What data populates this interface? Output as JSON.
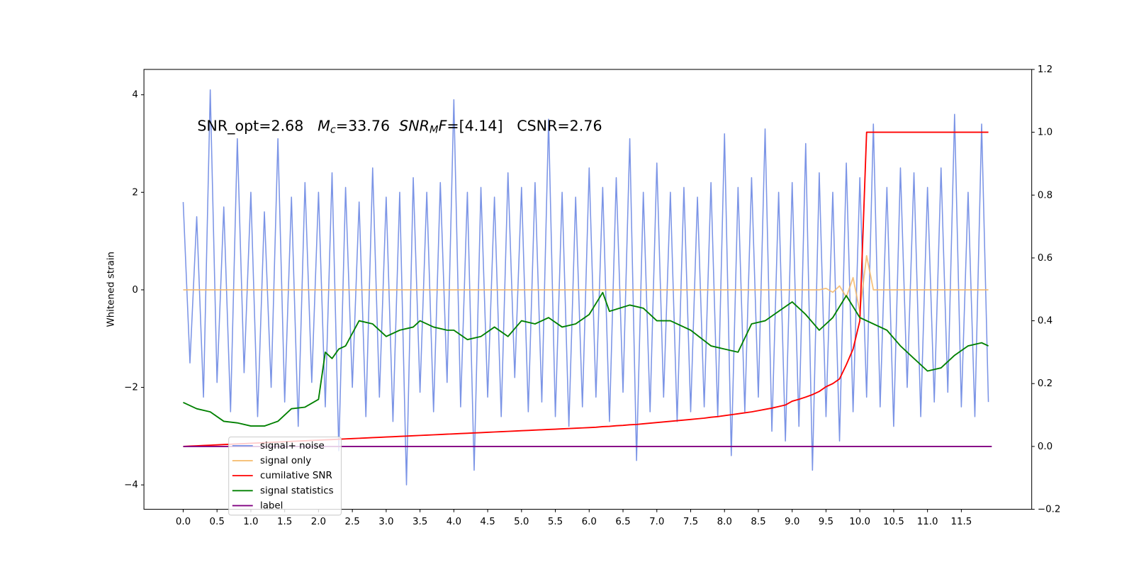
{
  "chart_data": {
    "type": "line",
    "ylabel": "Whitened strain",
    "annotation": [
      {
        "text": "SNR_opt=2.68   "
      },
      {
        "text": "M",
        "italic": true
      },
      {
        "text": "c",
        "italic": true,
        "sub": true
      },
      {
        "text": "=33.76  "
      },
      {
        "text": "SNR",
        "italic": true
      },
      {
        "text": "M",
        "italic": true,
        "sub": true
      },
      {
        "text": "F",
        "italic": true
      },
      {
        "text": "=[4.14]   CSNR=2.76"
      }
    ],
    "xlim": [
      -0.58,
      12.54
    ],
    "xticks": [
      {
        "value": 0,
        "label": "0.0"
      },
      0.5,
      {
        "value": 1,
        "label": "1.0"
      },
      1.5,
      {
        "value": 2,
        "label": "2.0"
      },
      2.5,
      {
        "value": 3,
        "label": "3.0"
      },
      3.5,
      {
        "value": 4,
        "label": "4.0"
      },
      4.5,
      {
        "value": 5,
        "label": "5.0"
      },
      5.5,
      {
        "value": 6,
        "label": "6.0"
      },
      6.5,
      {
        "value": 7,
        "label": "7.0"
      },
      7.5,
      {
        "value": 8,
        "label": "8.0"
      },
      8.5,
      {
        "value": 9,
        "label": "9.0"
      },
      9.5,
      {
        "value": 10,
        "label": "10.0"
      },
      10.5,
      {
        "value": 11,
        "label": "11.0"
      },
      11.5
    ],
    "ylim": [
      -4.5,
      4.52
    ],
    "yticks": [
      {
        "value": -4,
        "label": "−4"
      },
      {
        "value": -2,
        "label": "−2"
      },
      0,
      2,
      4
    ],
    "y2lim": [
      -0.2,
      1.2
    ],
    "y2ticks": [
      {
        "value": -0.2,
        "label": "−0.2"
      },
      {
        "value": 0,
        "label": "0.0"
      },
      0.2,
      0.4,
      0.6,
      0.8,
      {
        "value": 1,
        "label": "1.0"
      },
      1.2
    ],
    "x": [
      0,
      0.1,
      0.2,
      0.3,
      0.4,
      0.5,
      0.6,
      0.7,
      0.8,
      0.9,
      1,
      1.1,
      1.2,
      1.3,
      1.4,
      1.5,
      1.6,
      1.7,
      1.8,
      1.9,
      2,
      2.1,
      2.2,
      2.3,
      2.4,
      2.5,
      2.6,
      2.7,
      2.8,
      2.9,
      3,
      3.1,
      3.2,
      3.3,
      3.4,
      3.5,
      3.6,
      3.7,
      3.8,
      3.9,
      4,
      4.1,
      4.2,
      4.3,
      4.4,
      4.5,
      4.6,
      4.7,
      4.8,
      4.9,
      5,
      5.1,
      5.2,
      5.3,
      5.4,
      5.5,
      5.6,
      5.7,
      5.8,
      5.9,
      6,
      6.1,
      6.2,
      6.3,
      6.4,
      6.5,
      6.6,
      6.7,
      6.8,
      6.9,
      7,
      7.1,
      7.2,
      7.3,
      7.4,
      7.5,
      7.6,
      7.7,
      7.8,
      7.9,
      8,
      8.1,
      8.2,
      8.3,
      8.4,
      8.5,
      8.6,
      8.7,
      8.8,
      8.9,
      9,
      9.1,
      9.2,
      9.3,
      9.4,
      9.5,
      9.6,
      9.7,
      9.8,
      9.9,
      10,
      10.1,
      10.2,
      10.3,
      10.4,
      10.5,
      10.6,
      10.7,
      10.8,
      10.9,
      11,
      11.1,
      11.2,
      11.3,
      11.4,
      11.5,
      11.6,
      11.7,
      11.8,
      11.9
    ],
    "legend_loc": "lower left",
    "series": [
      {
        "name": "signal+ noise",
        "color": "#7b94e6",
        "values": [
          1.8,
          -1.5,
          1.5,
          -2.2,
          4.1,
          -1.9,
          1.7,
          -2.5,
          3.1,
          -1.7,
          2.0,
          -2.6,
          1.6,
          -2.0,
          3.1,
          -2.3,
          1.9,
          -2.8,
          2.2,
          -1.9,
          2.0,
          -2.4,
          2.4,
          -3.3,
          2.1,
          -2.0,
          1.8,
          -2.6,
          2.5,
          -2.2,
          1.9,
          -2.7,
          2.0,
          -4.0,
          2.3,
          -2.1,
          2.0,
          -2.5,
          2.2,
          -1.9,
          3.9,
          -2.4,
          2.0,
          -3.7,
          2.1,
          -2.2,
          1.9,
          -2.6,
          2.4,
          -1.8,
          2.1,
          -2.5,
          2.2,
          -2.3,
          3.5,
          -2.6,
          2.0,
          -2.8,
          1.9,
          -2.4,
          2.5,
          -2.2,
          2.1,
          -2.7,
          2.3,
          -2.1,
          3.1,
          -3.5,
          2.0,
          -2.5,
          2.6,
          -2.2,
          2.0,
          -2.7,
          2.1,
          -2.5,
          1.9,
          -2.4,
          2.2,
          -2.6,
          3.2,
          -3.4,
          2.1,
          -2.5,
          2.3,
          -2.2,
          3.3,
          -2.9,
          2.0,
          -3.1,
          2.2,
          -2.8,
          3.0,
          -3.7,
          2.4,
          -2.6,
          2.0,
          -3.1,
          2.6,
          -2.5,
          2.3,
          -2.2,
          3.4,
          -2.4,
          2.1,
          -2.8,
          2.5,
          -2.0,
          2.4,
          -2.6,
          2.1,
          -2.3,
          2.5,
          -2.1,
          3.6,
          -2.4,
          2.0,
          -2.6,
          3.4,
          -2.3
        ]
      },
      {
        "name": "signal only",
        "color": "#f5b96a",
        "values": [
          0,
          0,
          0,
          0,
          0,
          0,
          0,
          0,
          0,
          0,
          0,
          0,
          0,
          0,
          0,
          0,
          0,
          0,
          0,
          0,
          0,
          0,
          0,
          0,
          0,
          0,
          0,
          0,
          0,
          0,
          0,
          0,
          0,
          0,
          0,
          0,
          0,
          0,
          0,
          0,
          0,
          0,
          0,
          0,
          0,
          0,
          0,
          0,
          0,
          0,
          0,
          0,
          0,
          0,
          0,
          0,
          0,
          0,
          0,
          0,
          0,
          0,
          0,
          0,
          0,
          0,
          0,
          0,
          0,
          0,
          0,
          0,
          0,
          0,
          0,
          0,
          0,
          0,
          0,
          0,
          0,
          0,
          0,
          0,
          0,
          0,
          0,
          0,
          0,
          0,
          0,
          0,
          0,
          0,
          0,
          0.03,
          -0.05,
          0.08,
          -0.15,
          0.25,
          -0.45,
          0.7,
          0,
          0,
          0,
          0,
          0,
          0,
          0,
          0,
          0,
          0,
          0,
          0,
          0,
          0,
          0,
          0,
          0,
          0
        ]
      },
      {
        "name": "cumilative SNR",
        "color": "#ff0000",
        "axis": "y2",
        "values": [
          0,
          0.001,
          0.002,
          0.003,
          0.004,
          0.005,
          0.006,
          0.007,
          0.008,
          0.009,
          0.01,
          0.011,
          0.012,
          0.013,
          0.014,
          0.015,
          0.016,
          0.017,
          0.018,
          0.019,
          0.02,
          0.021,
          0.022,
          0.023,
          0.024,
          0.025,
          0.026,
          0.027,
          0.028,
          0.029,
          0.03,
          0.031,
          0.032,
          0.033,
          0.034,
          0.035,
          0.036,
          0.037,
          0.038,
          0.039,
          0.04,
          0.041,
          0.042,
          0.043,
          0.044,
          0.045,
          0.046,
          0.047,
          0.048,
          0.049,
          0.05,
          0.051,
          0.052,
          0.053,
          0.054,
          0.055,
          0.056,
          0.057,
          0.058,
          0.059,
          0.06,
          0.061,
          0.063,
          0.064,
          0.066,
          0.067,
          0.069,
          0.07,
          0.072,
          0.074,
          0.076,
          0.078,
          0.08,
          0.082,
          0.084,
          0.086,
          0.088,
          0.09,
          0.093,
          0.095,
          0.098,
          0.101,
          0.104,
          0.107,
          0.11,
          0.114,
          0.118,
          0.122,
          0.127,
          0.132,
          0.144,
          0.15,
          0.157,
          0.165,
          0.175,
          0.19,
          0.2,
          0.215,
          0.26,
          0.31,
          0.4,
          1.0,
          1.0,
          1.0,
          1.0,
          1.0,
          1.0,
          1.0,
          1.0,
          1.0,
          1.0,
          1.0,
          1.0,
          1.0,
          1.0,
          1.0,
          1.0,
          1.0,
          1.0,
          1.0
        ]
      },
      {
        "name": "signal statistics",
        "color": "#008000",
        "axis": "y2",
        "x": [
          0,
          0.2,
          0.4,
          0.6,
          0.8,
          1.0,
          1.2,
          1.4,
          1.6,
          1.8,
          2.0,
          2.1,
          2.2,
          2.3,
          2.4,
          2.5,
          2.6,
          2.8,
          3.0,
          3.2,
          3.4,
          3.5,
          3.7,
          3.9,
          4.0,
          4.2,
          4.4,
          4.6,
          4.8,
          5.0,
          5.2,
          5.4,
          5.6,
          5.8,
          6.0,
          6.2,
          6.3,
          6.6,
          6.8,
          7.0,
          7.2,
          7.5,
          7.8,
          8.0,
          8.2,
          8.4,
          8.6,
          8.8,
          9.0,
          9.2,
          9.4,
          9.6,
          9.8,
          10.0,
          10.2,
          10.4,
          10.6,
          10.8,
          11.0,
          11.2,
          11.4,
          11.6,
          11.8,
          11.9
        ],
        "values": [
          0.14,
          0.12,
          0.11,
          0.08,
          0.075,
          0.065,
          0.065,
          0.08,
          0.12,
          0.125,
          0.15,
          0.3,
          0.28,
          0.31,
          0.32,
          0.36,
          0.4,
          0.39,
          0.35,
          0.37,
          0.38,
          0.4,
          0.38,
          0.37,
          0.37,
          0.34,
          0.35,
          0.38,
          0.35,
          0.4,
          0.39,
          0.41,
          0.38,
          0.39,
          0.42,
          0.49,
          0.43,
          0.45,
          0.44,
          0.4,
          0.4,
          0.37,
          0.32,
          0.31,
          0.3,
          0.39,
          0.4,
          0.43,
          0.46,
          0.42,
          0.37,
          0.41,
          0.48,
          0.41,
          0.39,
          0.37,
          0.32,
          0.28,
          0.24,
          0.25,
          0.29,
          0.32,
          0.33,
          0.32
        ]
      },
      {
        "name": "label",
        "color": "#800080",
        "axis": "y2",
        "x": [
          0,
          11.95
        ],
        "values": [
          0,
          0
        ]
      }
    ]
  }
}
